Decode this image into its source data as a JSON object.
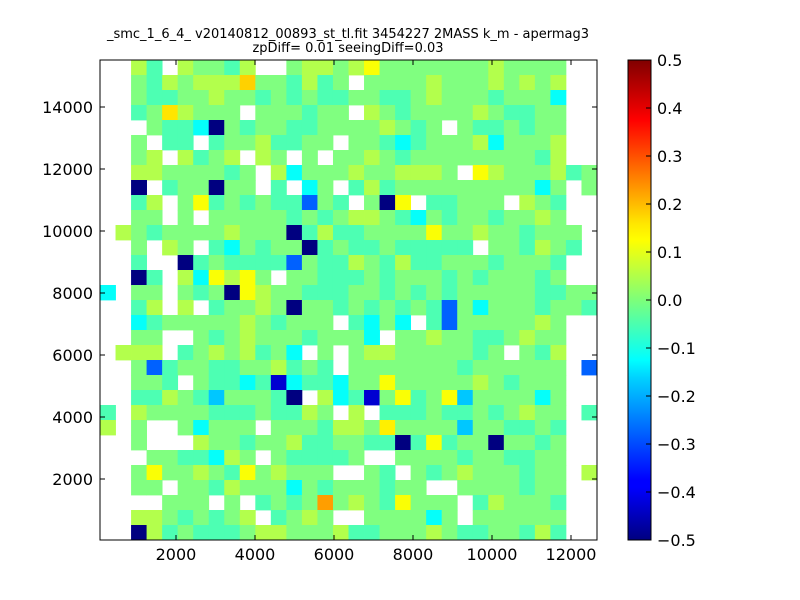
{
  "chart_data": {
    "type": "heatmap",
    "title_line1": "_smc_1_6_4_ v20140812_00893_st_tl.fit 3454227 2MASS k_m - apermag3",
    "title_line2": "zpDiff= 0.01 seeingDiff=0.03",
    "xlabel": "",
    "ylabel": "",
    "xlim": [
      76,
      12658
    ],
    "ylim": [
      32,
      15516
    ],
    "xticks": [
      2000,
      4000,
      6000,
      8000,
      10000,
      12000
    ],
    "yticks": [
      2000,
      4000,
      6000,
      8000,
      10000,
      12000,
      14000
    ],
    "colormap": "jet",
    "clim": [
      -0.5,
      0.5
    ],
    "colorbar_ticks": [
      -0.5,
      -0.4,
      -0.3,
      -0.2,
      -0.1,
      0.0,
      0.1,
      0.2,
      0.3,
      0.4,
      0.5
    ],
    "colorbar_tick_labels": [
      "−0.5",
      "−0.4",
      "−0.3",
      "−0.2",
      "−0.1",
      "0.0",
      "0.1",
      "0.2",
      "0.3",
      "0.4",
      "0.5"
    ],
    "grid": false,
    "n_cols": 32,
    "n_rows": 32,
    "row_order": "top-to-bottom",
    "values": [
      [
        null,
        null,
        0.05,
        -0.05,
        null,
        0.05,
        0,
        0,
        -0.05,
        0.05,
        null,
        null,
        0,
        0.05,
        0.05,
        0,
        0.05,
        0.12,
        0,
        0,
        0,
        0,
        0,
        0,
        0,
        0.05,
        0,
        0,
        0,
        0,
        null,
        null
      ],
      [
        null,
        null,
        0,
        -0.05,
        0.05,
        0,
        0.05,
        0.05,
        0.05,
        0.17,
        0,
        0,
        -0.05,
        0.05,
        -0.05,
        0,
        null,
        0,
        0,
        0,
        0,
        0.05,
        0,
        0,
        0,
        0.05,
        0,
        0.05,
        0,
        0.05,
        null,
        null
      ],
      [
        null,
        null,
        0,
        -0.05,
        -0.05,
        0,
        0,
        0.05,
        0,
        0,
        -0.05,
        0,
        -0.05,
        0,
        -0.05,
        -0.05,
        0,
        0,
        -0.05,
        -0.05,
        0,
        0.05,
        0,
        0,
        0,
        -0.05,
        0,
        0,
        0,
        -0.12,
        null,
        null
      ],
      [
        null,
        null,
        -0.05,
        0,
        0.15,
        0.05,
        0,
        0,
        0,
        null,
        0,
        0,
        0,
        -0.05,
        0,
        0,
        null,
        0.05,
        0,
        -0.05,
        0,
        0,
        0,
        0,
        0.05,
        0,
        -0.05,
        -0.05,
        0,
        0,
        null,
        null
      ],
      [
        null,
        null,
        null,
        0,
        -0.05,
        -0.05,
        -0.12,
        -0.5,
        0,
        -0.05,
        0,
        0,
        -0.05,
        -0.05,
        0,
        0,
        0,
        0,
        0.05,
        0,
        -0.05,
        0,
        null,
        0,
        -0.05,
        -0.05,
        0,
        -0.05,
        0,
        0,
        null,
        null
      ],
      [
        null,
        null,
        0,
        null,
        -0.05,
        -0.05,
        null,
        -0.05,
        0,
        0,
        0.05,
        -0.05,
        -0.05,
        0,
        0,
        null,
        0,
        0,
        -0.05,
        -0.12,
        -0.05,
        0,
        0,
        0,
        0.05,
        -0.12,
        0,
        0,
        0,
        0.05,
        null,
        null
      ],
      [
        null,
        null,
        0,
        0.05,
        null,
        0.05,
        -0.05,
        0,
        0.05,
        null,
        0.05,
        0,
        null,
        0,
        null,
        0,
        0,
        0.05,
        0,
        -0.05,
        0,
        0,
        0,
        0,
        0,
        0,
        0,
        0,
        -0.05,
        0.05,
        null,
        null
      ],
      [
        null,
        null,
        0.05,
        0.05,
        0,
        0,
        0,
        0,
        -0.05,
        0,
        null,
        0.05,
        -0.12,
        0,
        0,
        0,
        0.05,
        0,
        0,
        0.05,
        0.05,
        0.05,
        0,
        null,
        0.12,
        0.05,
        0,
        0,
        0,
        0.05,
        -0.05,
        0
      ],
      [
        null,
        null,
        -0.5,
        null,
        -0.05,
        0,
        0,
        -0.5,
        0,
        0,
        null,
        -0.05,
        null,
        -0.12,
        0,
        null,
        -0.05,
        0.05,
        -0.05,
        0,
        0,
        0,
        0,
        0,
        0,
        0,
        0,
        0,
        -0.12,
        0,
        null,
        0
      ],
      [
        null,
        null,
        -0.05,
        0.05,
        null,
        0,
        0.12,
        -0.05,
        0,
        -0.05,
        0,
        -0.05,
        -0.05,
        -0.28,
        0,
        -0.05,
        null,
        0,
        -0.5,
        0.12,
        null,
        -0.05,
        -0.05,
        0,
        0,
        0,
        null,
        0.05,
        0,
        -0.05,
        null,
        null
      ],
      [
        null,
        null,
        0,
        0,
        null,
        0,
        null,
        0,
        0,
        0,
        0,
        0,
        -0.05,
        0,
        -0.05,
        0,
        0.05,
        0.05,
        0,
        -0.05,
        -0.12,
        0,
        -0.05,
        0,
        0,
        -0.05,
        0,
        0,
        0.05,
        0,
        null,
        null
      ],
      [
        null,
        0.05,
        0,
        -0.05,
        0,
        0,
        0,
        0,
        0.05,
        0,
        0,
        0,
        -0.5,
        -0.05,
        0.05,
        -0.05,
        -0.05,
        0,
        0,
        0,
        0,
        0.12,
        0,
        0,
        0.05,
        0,
        0,
        -0.05,
        0,
        0,
        0,
        null
      ],
      [
        null,
        null,
        0,
        null,
        0.05,
        0,
        null,
        -0.05,
        -0.12,
        0,
        -0.05,
        0,
        0,
        -0.5,
        -0.05,
        0,
        -0.05,
        -0.05,
        0,
        -0.05,
        -0.05,
        -0.05,
        -0.05,
        -0.05,
        null,
        0,
        0,
        -0.05,
        0.05,
        0,
        -0.05,
        null
      ],
      [
        null,
        null,
        -0.05,
        null,
        null,
        -0.5,
        -0.05,
        0,
        -0.05,
        -0.05,
        -0.05,
        -0.05,
        -0.28,
        0,
        -0.05,
        -0.05,
        0.05,
        0,
        -0.05,
        0.05,
        -0.05,
        -0.05,
        0,
        0,
        0,
        -0.05,
        0,
        0,
        0,
        -0.05,
        null,
        null
      ],
      [
        null,
        null,
        -0.5,
        -0.05,
        null,
        0.05,
        -0.12,
        0.12,
        0.05,
        0.12,
        0,
        null,
        0,
        0,
        -0.05,
        -0.05,
        -0.05,
        0,
        -0.05,
        0,
        0,
        0,
        -0.05,
        0,
        -0.05,
        0,
        0,
        0,
        -0.05,
        0,
        null,
        null
      ],
      [
        -0.12,
        null,
        0,
        0,
        null,
        0,
        -0.05,
        0,
        -0.5,
        0.12,
        0.05,
        0,
        0,
        -0.05,
        -0.05,
        -0.05,
        0,
        0,
        -0.05,
        0,
        -0.05,
        0,
        -0.05,
        0,
        0,
        0,
        0,
        0,
        -0.05,
        -0.05,
        0,
        0
      ],
      [
        null,
        null,
        -0.05,
        0.05,
        null,
        0.05,
        null,
        -0.05,
        0,
        0,
        0.05,
        0,
        -0.5,
        0,
        0,
        -0.05,
        0,
        -0.05,
        0,
        -0.05,
        0,
        -0.05,
        -0.28,
        0,
        -0.12,
        0,
        0,
        0,
        -0.05,
        0,
        0,
        -0.05
      ],
      [
        null,
        null,
        -0.12,
        -0.05,
        0,
        0,
        0,
        0,
        0,
        0.05,
        0,
        -0.05,
        0,
        0,
        0,
        null,
        -0.05,
        -0.12,
        0,
        -0.12,
        null,
        -0.05,
        -0.28,
        0,
        0,
        0,
        0,
        0,
        0.05,
        0,
        null,
        null
      ],
      [
        null,
        null,
        0,
        0,
        null,
        null,
        0,
        -0.05,
        0,
        0.05,
        0,
        0,
        0,
        -0.05,
        0,
        0,
        0,
        -0.12,
        null,
        0,
        0,
        0.05,
        0,
        0,
        -0.05,
        -0.05,
        0,
        0.05,
        0,
        0,
        null,
        null
      ],
      [
        null,
        0.05,
        0.05,
        0.05,
        null,
        -0.05,
        0,
        0.05,
        0,
        0.05,
        -0.05,
        0,
        -0.12,
        null,
        0,
        null,
        0,
        0.05,
        0.05,
        0,
        0,
        0,
        0,
        0,
        -0.05,
        0,
        null,
        0,
        -0.05,
        0.05,
        null,
        null
      ],
      [
        null,
        null,
        0,
        -0.28,
        -0.05,
        0,
        0,
        -0.05,
        -0.05,
        0,
        0,
        0.05,
        -0.05,
        0,
        -0.05,
        null,
        0,
        0,
        0,
        0,
        0,
        0,
        0,
        -0.05,
        0,
        0,
        0,
        0,
        0,
        0,
        null,
        -0.28
      ],
      [
        null,
        null,
        0,
        0,
        -0.05,
        null,
        0,
        -0.05,
        -0.05,
        -0.12,
        -0.05,
        -0.42,
        -0.12,
        -0.05,
        -0.05,
        -0.12,
        0,
        0,
        0.12,
        0,
        0,
        0,
        0,
        0,
        0.05,
        0,
        -0.05,
        0,
        0,
        0,
        null,
        null
      ],
      [
        null,
        null,
        -0.05,
        -0.05,
        0.05,
        0,
        -0.05,
        -0.18,
        0,
        0,
        0,
        -0.05,
        -0.5,
        null,
        0.05,
        -0.12,
        -0.05,
        -0.42,
        0,
        0.12,
        -0.05,
        0,
        0.12,
        -0.18,
        0,
        0,
        0,
        0,
        -0.12,
        0,
        null,
        null
      ],
      [
        -0.05,
        null,
        0.05,
        0,
        0,
        0,
        0,
        -0.05,
        -0.05,
        -0.05,
        0,
        -0.05,
        -0.05,
        0.05,
        0,
        null,
        0.05,
        null,
        -0.05,
        -0.05,
        -0.05,
        0,
        -0.05,
        -0.05,
        0,
        -0.05,
        0,
        0.05,
        0,
        0,
        null,
        -0.05
      ],
      [
        0.05,
        null,
        0,
        null,
        null,
        0,
        -0.12,
        0,
        0,
        0,
        null,
        0,
        0,
        0,
        -0.05,
        0.05,
        0.05,
        0,
        0.14,
        0,
        0,
        0,
        0,
        -0.18,
        0,
        0,
        -0.05,
        -0.05,
        0,
        -0.05,
        null,
        null
      ],
      [
        null,
        null,
        0,
        null,
        null,
        null,
        0.05,
        0,
        0,
        -0.05,
        0,
        0,
        0.05,
        -0.05,
        -0.05,
        0,
        0,
        -0.05,
        -0.05,
        -0.5,
        -0.05,
        0.12,
        -0.05,
        0,
        0,
        -0.5,
        0,
        0,
        -0.05,
        0,
        null,
        null
      ],
      [
        null,
        null,
        null,
        0,
        0,
        -0.05,
        -0.05,
        -0.12,
        0.05,
        0,
        null,
        0,
        -0.05,
        -0.05,
        -0.05,
        -0.05,
        0,
        null,
        null,
        0,
        0,
        0,
        0,
        -0.05,
        0,
        0,
        -0.05,
        -0.05,
        0,
        0,
        null,
        null
      ],
      [
        null,
        null,
        0,
        0.12,
        0,
        0,
        0.05,
        0,
        -0.05,
        0.12,
        0,
        0.05,
        0,
        0,
        0,
        null,
        null,
        0,
        -0.05,
        null,
        0,
        -0.05,
        0,
        0.05,
        0,
        0,
        0,
        -0.05,
        0,
        0,
        null,
        0.05
      ],
      [
        null,
        null,
        0,
        0,
        null,
        0,
        0,
        -0.05,
        0.05,
        0,
        0,
        0,
        -0.12,
        0,
        -0.05,
        0,
        0,
        0,
        -0.05,
        0,
        0,
        null,
        null,
        0,
        0,
        0,
        0,
        -0.05,
        0,
        0,
        null,
        null
      ],
      [
        null,
        null,
        null,
        null,
        0,
        0,
        0,
        null,
        0,
        null,
        -0.05,
        0,
        -0.05,
        0,
        0.22,
        0,
        0.05,
        0,
        -0.05,
        0.12,
        0,
        0,
        0,
        null,
        -0.05,
        0.05,
        0,
        0,
        0,
        -0.05,
        null,
        null
      ],
      [
        null,
        null,
        0.05,
        0.05,
        0,
        -0.05,
        0,
        -0.05,
        0,
        0.05,
        null,
        -0.05,
        0,
        0.05,
        0,
        null,
        null,
        0,
        0,
        0,
        0,
        -0.12,
        0,
        null,
        0,
        0,
        0,
        0,
        0,
        0,
        null,
        null
      ],
      [
        null,
        null,
        -0.5,
        0.05,
        -0.05,
        0,
        -0.05,
        -0.05,
        -0.05,
        0,
        0.05,
        0.05,
        0,
        0,
        0,
        0.05,
        -0.05,
        -0.05,
        0,
        0,
        0,
        0.05,
        0,
        -0.05,
        -0.05,
        0,
        0,
        -0.05,
        0.05,
        -0.05,
        null,
        null
      ]
    ]
  }
}
